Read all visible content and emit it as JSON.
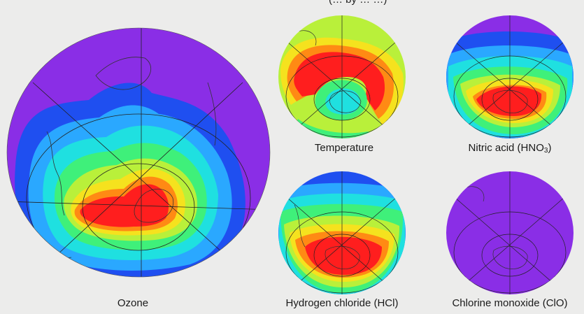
{
  "header": {
    "partial_title": "(… by … …)"
  },
  "panels": [
    {
      "id": "ozone",
      "label": "Ozone",
      "label_sub": "",
      "label_suffix": ""
    },
    {
      "id": "temperature",
      "label": "Temperature",
      "label_sub": "",
      "label_suffix": ""
    },
    {
      "id": "nitric-acid",
      "label": "Nitric acid (HNO",
      "label_sub": "3",
      "label_suffix": ")"
    },
    {
      "id": "hcl",
      "label": "Hydrogen chloride (HCl)",
      "label_sub": "",
      "label_suffix": ""
    },
    {
      "id": "clo",
      "label": "Chlorine monoxide (ClO)",
      "label_sub": "",
      "label_suffix": ""
    }
  ],
  "colors": {
    "background": "#ececeb",
    "violet": "#8a2ee6",
    "blue": "#1f4ff0",
    "light-blue": "#2aa8ff",
    "cyan": "#1fe0e0",
    "green": "#3ff07a",
    "yellow-green": "#b9f03a",
    "yellow": "#f5e21e",
    "orange": "#ff8a14",
    "red": "#ff1e1e",
    "coast": "#333333",
    "grid": "#222222"
  }
}
